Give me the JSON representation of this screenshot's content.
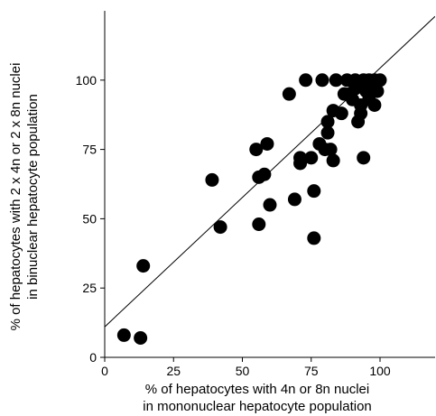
{
  "chart_data": {
    "type": "scatter",
    "title": "",
    "xlabel": [
      "% of hepatocytes with 4n or 8n nuclei",
      "in mononuclear hepatocyte population"
    ],
    "ylabel": [
      "% of hepatocytes with 2 x 4n or 2 x 8n nuclei",
      "in binuclear hepatocyte population"
    ],
    "xlim": [
      0,
      120
    ],
    "ylim": [
      0,
      125
    ],
    "xticks": [
      0,
      25,
      50,
      75,
      100
    ],
    "yticks": [
      0,
      25,
      50,
      75,
      100
    ],
    "grid": false,
    "legend": "none",
    "point_color": "#000000",
    "trendline": {
      "x": [
        0,
        120
      ],
      "y": [
        11,
        123
      ]
    },
    "points": [
      {
        "x": 7,
        "y": 8
      },
      {
        "x": 13,
        "y": 7
      },
      {
        "x": 14,
        "y": 33
      },
      {
        "x": 39,
        "y": 64
      },
      {
        "x": 42,
        "y": 47
      },
      {
        "x": 55,
        "y": 75
      },
      {
        "x": 56,
        "y": 65
      },
      {
        "x": 56,
        "y": 48
      },
      {
        "x": 58,
        "y": 66
      },
      {
        "x": 59,
        "y": 77
      },
      {
        "x": 60,
        "y": 55
      },
      {
        "x": 67,
        "y": 95
      },
      {
        "x": 69,
        "y": 57
      },
      {
        "x": 71,
        "y": 72
      },
      {
        "x": 71,
        "y": 70
      },
      {
        "x": 73,
        "y": 100
      },
      {
        "x": 75,
        "y": 72
      },
      {
        "x": 76,
        "y": 60
      },
      {
        "x": 76,
        "y": 43
      },
      {
        "x": 78,
        "y": 77
      },
      {
        "x": 79,
        "y": 100
      },
      {
        "x": 80,
        "y": 75
      },
      {
        "x": 81,
        "y": 81
      },
      {
        "x": 81,
        "y": 85
      },
      {
        "x": 82,
        "y": 75
      },
      {
        "x": 83,
        "y": 71
      },
      {
        "x": 83,
        "y": 89
      },
      {
        "x": 84,
        "y": 100
      },
      {
        "x": 86,
        "y": 88
      },
      {
        "x": 87,
        "y": 95
      },
      {
        "x": 88,
        "y": 100
      },
      {
        "x": 89,
        "y": 95
      },
      {
        "x": 90,
        "y": 93
      },
      {
        "x": 91,
        "y": 100
      },
      {
        "x": 91,
        "y": 97
      },
      {
        "x": 92,
        "y": 85
      },
      {
        "x": 93,
        "y": 91
      },
      {
        "x": 93,
        "y": 88
      },
      {
        "x": 94,
        "y": 100
      },
      {
        "x": 94,
        "y": 72
      },
      {
        "x": 95,
        "y": 96
      },
      {
        "x": 96,
        "y": 100
      },
      {
        "x": 96,
        "y": 93
      },
      {
        "x": 97,
        "y": 98
      },
      {
        "x": 97,
        "y": 96
      },
      {
        "x": 98,
        "y": 100
      },
      {
        "x": 98,
        "y": 91
      },
      {
        "x": 99,
        "y": 96
      },
      {
        "x": 100,
        "y": 100
      }
    ]
  }
}
